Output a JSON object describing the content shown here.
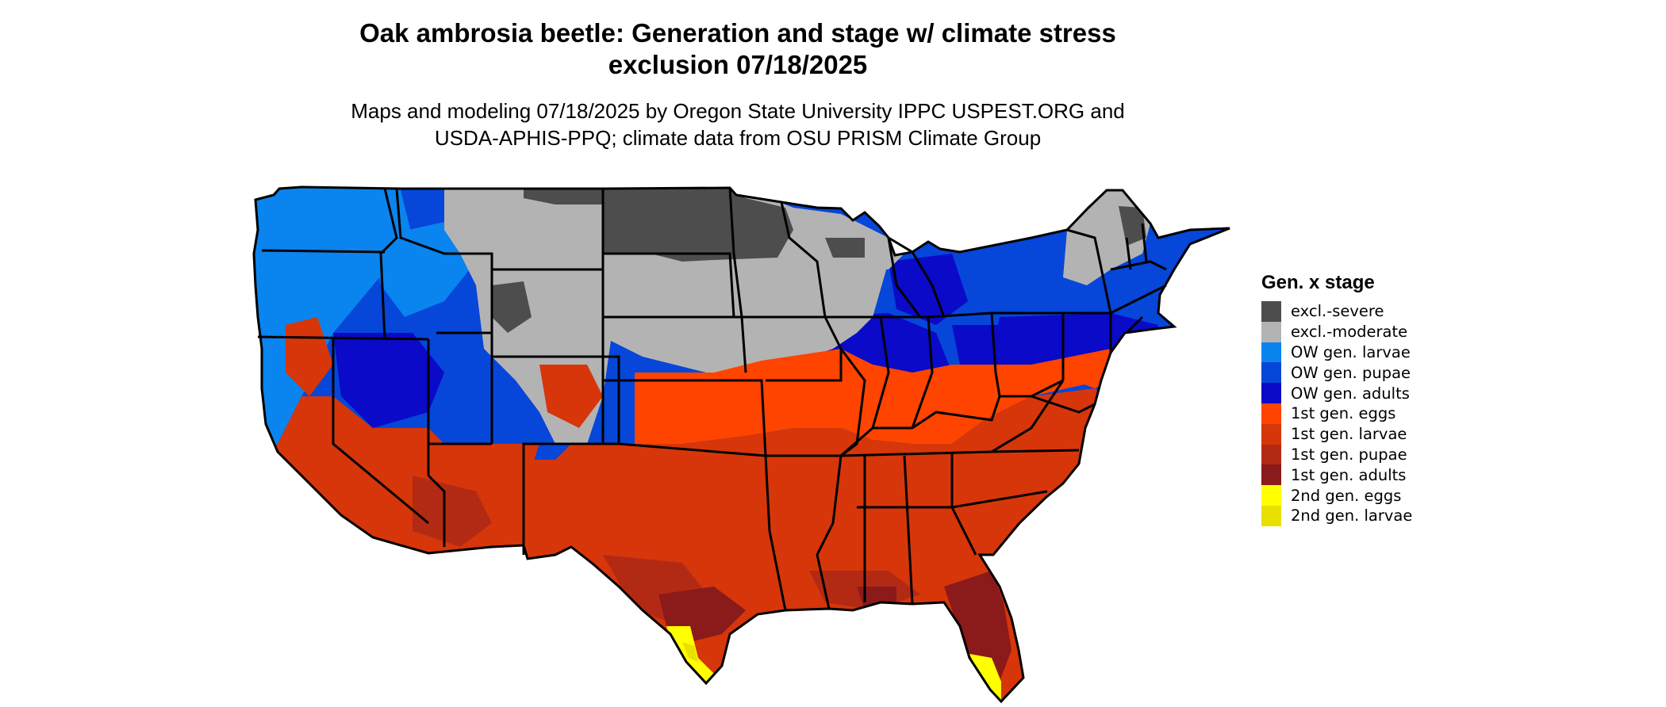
{
  "header": {
    "title_line1": "Oak ambrosia beetle: Generation and stage w/ climate stress",
    "title_line2": "exclusion 07/18/2025",
    "subtitle_line1": "Maps and modeling 07/18/2025 by Oregon State University IPPC USPEST.ORG and",
    "subtitle_line2": "USDA-APHIS-PPQ; climate data from OSU PRISM Climate Group"
  },
  "legend": {
    "title": "Gen. x stage",
    "items": [
      {
        "label": "excl.-severe",
        "color": "#4d4d4d"
      },
      {
        "label": "excl.-moderate",
        "color": "#b3b3b3"
      },
      {
        "label": "OW gen. larvae",
        "color": "#0a84ee"
      },
      {
        "label": "OW gen. pupae",
        "color": "#0646d9"
      },
      {
        "label": "OW gen. adults",
        "color": "#0a0ac8"
      },
      {
        "label": "1st gen. eggs",
        "color": "#ff4400"
      },
      {
        "label": "1st gen. larvae",
        "color": "#d6360a"
      },
      {
        "label": "1st gen. pupae",
        "color": "#b32a14"
      },
      {
        "label": "1st gen. adults",
        "color": "#8b1a1a"
      },
      {
        "label": "2nd gen. eggs",
        "color": "#ffff00"
      },
      {
        "label": "2nd gen. larvae",
        "color": "#e8e000"
      }
    ]
  }
}
